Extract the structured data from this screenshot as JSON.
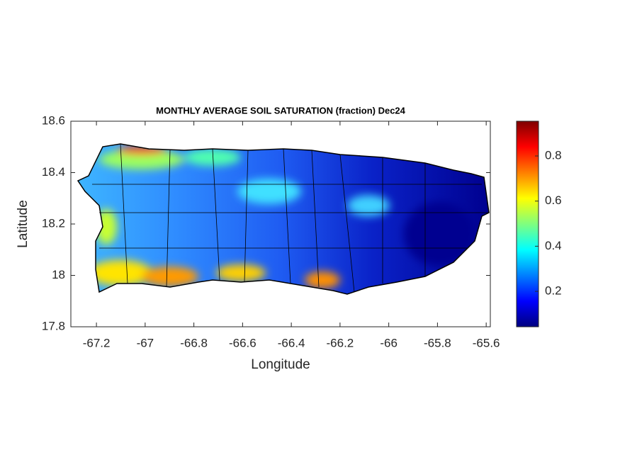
{
  "chart_data": {
    "type": "heatmap-map",
    "title": "MONTHLY AVERAGE SOIL SATURATION (fraction) Dec24",
    "x_label": "Longitude",
    "y_label": "Latitude",
    "xlim": [
      -67.305,
      -65.583
    ],
    "xticks": [
      -67.2,
      -67,
      -66.8,
      -66.6,
      -66.4,
      -66.2,
      -66,
      -65.8,
      -65.6
    ],
    "ylim": [
      17.8,
      18.6
    ],
    "yticks": [
      17.8,
      18,
      18.2,
      18.4,
      18.6
    ],
    "colormap": "jet",
    "clim": [
      0.043,
      0.954
    ],
    "cticks": [
      0.2,
      0.4,
      0.6,
      0.8
    ]
  }
}
